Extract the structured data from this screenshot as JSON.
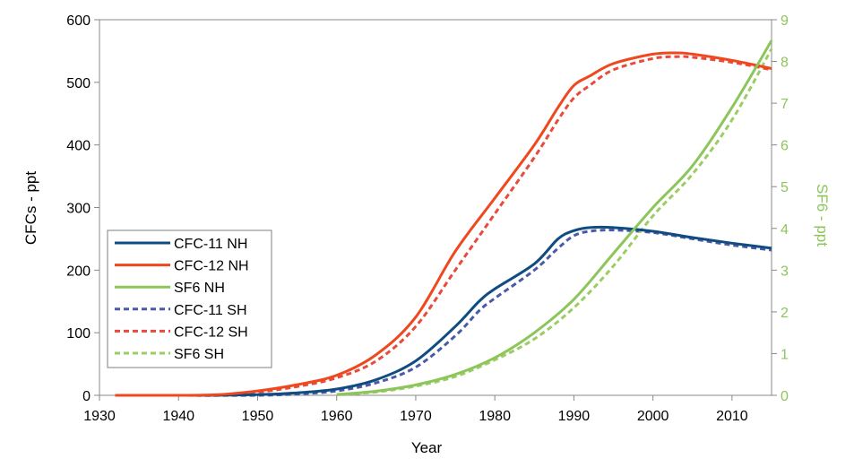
{
  "chart_data": {
    "type": "line",
    "xlabel": "Year",
    "ylabel_left": "CFCs - ppt",
    "ylabel_right": "SF6 - ppt",
    "xlim": [
      1930,
      2015
    ],
    "ylim_left": [
      0,
      600
    ],
    "ylim_right": [
      0,
      9
    ],
    "x_ticks": [
      "1930",
      "1940",
      "1950",
      "1960",
      "1970",
      "1980",
      "1990",
      "2000",
      "2010"
    ],
    "y_left_ticks": [
      "0",
      "100",
      "200",
      "300",
      "400",
      "500",
      "600"
    ],
    "y_right_ticks": [
      "0",
      "1",
      "2",
      "3",
      "4",
      "5",
      "6",
      "7",
      "8",
      "9"
    ],
    "grid": false,
    "legend_position": "left",
    "colors": {
      "cfc11": "#0f4c81",
      "cfc12": "#f0481e",
      "sf6": "#8cc65a",
      "cfc11_sh": "#4a5aa8",
      "cfc12_sh": "#e84a3c",
      "sf6_sh": "#9ccd62",
      "right_axis": "#8cc65a"
    },
    "series": [
      {
        "name": "CFC-11 NH",
        "axis": "left",
        "style": "solid",
        "color": "#0f4c81",
        "x": [
          1932,
          1940,
          1950,
          1955,
          1960,
          1965,
          1970,
          1975,
          1978,
          1980,
          1985,
          1988,
          1990,
          1992,
          1995,
          2000,
          2005,
          2010,
          2015
        ],
        "y": [
          0,
          0,
          1,
          4,
          10,
          25,
          55,
          110,
          150,
          170,
          210,
          250,
          263,
          268,
          268,
          262,
          252,
          243,
          235
        ]
      },
      {
        "name": "CFC-12 NH",
        "axis": "left",
        "style": "solid",
        "color": "#f0481e",
        "x": [
          1932,
          1940,
          1945,
          1950,
          1955,
          1960,
          1965,
          1970,
          1975,
          1980,
          1985,
          1988,
          1990,
          1992,
          1995,
          2000,
          2003,
          2005,
          2010,
          2015
        ],
        "y": [
          0,
          0,
          1,
          7,
          17,
          32,
          65,
          125,
          230,
          315,
          400,
          460,
          495,
          510,
          530,
          545,
          547,
          545,
          535,
          522
        ]
      },
      {
        "name": "SF6 NH",
        "axis": "right",
        "style": "solid",
        "color": "#8cc65a",
        "x": [
          1960,
          1965,
          1970,
          1975,
          1980,
          1985,
          1990,
          1995,
          2000,
          2005,
          2010,
          2015
        ],
        "y": [
          0.02,
          0.1,
          0.25,
          0.5,
          0.9,
          1.5,
          2.3,
          3.4,
          4.5,
          5.5,
          6.9,
          8.5
        ]
      },
      {
        "name": "CFC-11 SH",
        "axis": "left",
        "style": "dashed",
        "color": "#4a5aa8",
        "x": [
          1932,
          1940,
          1950,
          1955,
          1960,
          1965,
          1970,
          1975,
          1978,
          1980,
          1985,
          1988,
          1990,
          1992,
          1995,
          2000,
          2005,
          2010,
          2015
        ],
        "y": [
          0,
          0,
          0,
          2,
          7,
          20,
          45,
          95,
          135,
          155,
          200,
          235,
          255,
          262,
          264,
          260,
          250,
          240,
          232
        ]
      },
      {
        "name": "CFC-12 SH",
        "axis": "left",
        "style": "dashed",
        "color": "#e84a3c",
        "x": [
          1932,
          1940,
          1945,
          1950,
          1955,
          1960,
          1965,
          1970,
          1975,
          1980,
          1985,
          1988,
          1990,
          1992,
          1995,
          2000,
          2003,
          2005,
          2010,
          2015
        ],
        "y": [
          0,
          0,
          0,
          5,
          14,
          28,
          55,
          110,
          200,
          290,
          380,
          440,
          475,
          495,
          520,
          538,
          541,
          540,
          532,
          520
        ]
      },
      {
        "name": "SF6 SH",
        "axis": "right",
        "style": "dashed",
        "color": "#9ccd62",
        "x": [
          1960,
          1965,
          1970,
          1975,
          1980,
          1985,
          1990,
          1995,
          2000,
          2005,
          2010,
          2015
        ],
        "y": [
          0.01,
          0.08,
          0.22,
          0.45,
          0.85,
          1.35,
          2.1,
          3.1,
          4.3,
          5.3,
          6.6,
          8.3
        ]
      }
    ]
  }
}
